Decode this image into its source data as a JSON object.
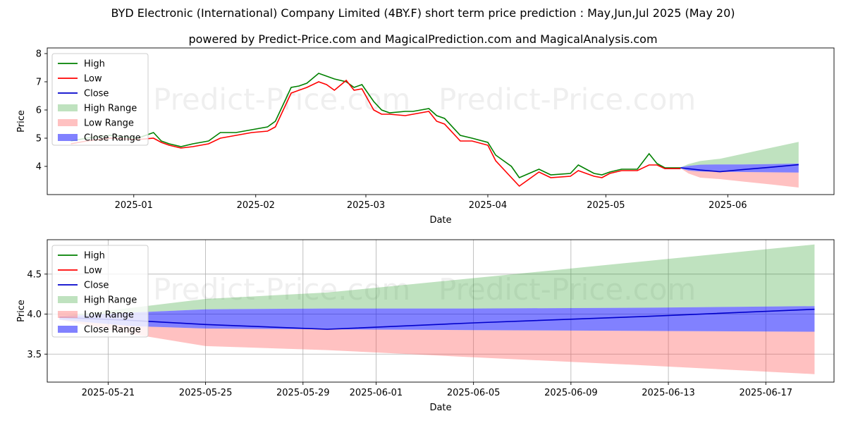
{
  "title": "BYD Electronic (International) Company Limited (4BY.F) short term price prediction : May,Jun,Jul 2025 (May 20)",
  "subtitle": "powered by Predict-Price.com and MagicalPrediction.com and MagicalAnalysis.com",
  "watermark": "Predict-Price.com",
  "colors": {
    "high": "#008000",
    "low": "#ff0000",
    "close": "#0000cc",
    "high_range": "#2ca02c",
    "low_range": "#ff4d4d",
    "close_range": "#1a1aff"
  },
  "chart_data": [
    {
      "type": "line",
      "xlabel": "Date",
      "ylabel": "Price",
      "ylim": [
        3,
        8.2
      ],
      "yticks": [
        4,
        5,
        6,
        7,
        8
      ],
      "xticks": [
        {
          "x": "2025-01-01",
          "label": "2025-01"
        },
        {
          "x": "2025-02-01",
          "label": "2025-02"
        },
        {
          "x": "2025-03-01",
          "label": "2025-03"
        },
        {
          "x": "2025-04-01",
          "label": "2025-04"
        },
        {
          "x": "2025-05-01",
          "label": "2025-05"
        },
        {
          "x": "2025-06-01",
          "label": "2025-06"
        }
      ],
      "xlim": [
        "2024-12-10",
        "2025-06-28"
      ],
      "legend": {
        "position": "top-left",
        "entries": [
          "High",
          "Low",
          "Close",
          "High Range",
          "Low Range",
          "Close Range"
        ]
      },
      "series": [
        {
          "name": "High",
          "x": [
            "2024-12-16",
            "2024-12-20",
            "2024-12-26",
            "2025-01-02",
            "2025-01-06",
            "2025-01-08",
            "2025-01-10",
            "2025-01-13",
            "2025-01-16",
            "2025-01-20",
            "2025-01-23",
            "2025-01-27",
            "2025-01-31",
            "2025-02-04",
            "2025-02-06",
            "2025-02-10",
            "2025-02-12",
            "2025-02-14",
            "2025-02-17",
            "2025-02-19",
            "2025-02-21",
            "2025-02-24",
            "2025-02-26",
            "2025-02-28",
            "2025-03-03",
            "2025-03-05",
            "2025-03-07",
            "2025-03-11",
            "2025-03-13",
            "2025-03-17",
            "2025-03-19",
            "2025-03-21",
            "2025-03-25",
            "2025-03-28",
            "2025-04-01",
            "2025-04-03",
            "2025-04-07",
            "2025-04-09",
            "2025-04-14",
            "2025-04-17",
            "2025-04-22",
            "2025-04-24",
            "2025-04-28",
            "2025-04-30",
            "2025-05-02",
            "2025-05-05",
            "2025-05-09",
            "2025-05-12",
            "2025-05-14",
            "2025-05-16",
            "2025-05-20"
          ],
          "values": [
            4.9,
            5.0,
            5.1,
            5.0,
            5.2,
            4.9,
            4.8,
            4.7,
            4.8,
            4.9,
            5.2,
            5.2,
            5.3,
            5.4,
            5.6,
            6.8,
            6.85,
            6.95,
            7.3,
            7.2,
            7.1,
            7.0,
            6.8,
            6.9,
            6.3,
            6.0,
            5.9,
            5.95,
            5.95,
            6.05,
            5.8,
            5.7,
            5.1,
            5.0,
            4.85,
            4.4,
            4.0,
            3.6,
            3.9,
            3.7,
            3.75,
            4.05,
            3.75,
            3.7,
            3.8,
            3.9,
            3.9,
            4.45,
            4.1,
            3.95,
            3.95
          ]
        },
        {
          "name": "Low",
          "x": [
            "2024-12-16",
            "2024-12-20",
            "2024-12-26",
            "2025-01-02",
            "2025-01-06",
            "2025-01-08",
            "2025-01-10",
            "2025-01-13",
            "2025-01-16",
            "2025-01-20",
            "2025-01-23",
            "2025-01-27",
            "2025-01-31",
            "2025-02-04",
            "2025-02-06",
            "2025-02-10",
            "2025-02-12",
            "2025-02-14",
            "2025-02-17",
            "2025-02-19",
            "2025-02-21",
            "2025-02-24",
            "2025-02-26",
            "2025-02-28",
            "2025-03-03",
            "2025-03-05",
            "2025-03-07",
            "2025-03-11",
            "2025-03-13",
            "2025-03-17",
            "2025-03-19",
            "2025-03-21",
            "2025-03-25",
            "2025-03-28",
            "2025-04-01",
            "2025-04-03",
            "2025-04-07",
            "2025-04-09",
            "2025-04-14",
            "2025-04-17",
            "2025-04-22",
            "2025-04-24",
            "2025-04-28",
            "2025-04-30",
            "2025-05-02",
            "2025-05-05",
            "2025-05-09",
            "2025-05-12",
            "2025-05-14",
            "2025-05-16",
            "2025-05-20"
          ],
          "values": [
            4.8,
            4.9,
            5.0,
            4.95,
            5.0,
            4.85,
            4.75,
            4.65,
            4.7,
            4.8,
            5.0,
            5.1,
            5.2,
            5.25,
            5.4,
            6.6,
            6.7,
            6.8,
            7.0,
            6.9,
            6.7,
            7.05,
            6.7,
            6.75,
            6.0,
            5.85,
            5.85,
            5.8,
            5.85,
            5.95,
            5.6,
            5.5,
            4.9,
            4.9,
            4.75,
            4.2,
            3.6,
            3.3,
            3.8,
            3.6,
            3.65,
            3.85,
            3.65,
            3.6,
            3.75,
            3.85,
            3.85,
            4.05,
            4.05,
            3.92,
            3.92
          ]
        },
        {
          "name": "Close",
          "x": [
            "2025-05-20",
            "2025-05-25",
            "2025-05-30",
            "2025-06-05",
            "2025-06-12",
            "2025-06-19"
          ],
          "values": [
            3.95,
            3.87,
            3.81,
            3.89,
            3.97,
            4.06
          ]
        },
        {
          "name": "High Range",
          "x": [
            "2025-05-20",
            "2025-05-22",
            "2025-05-25",
            "2025-05-30",
            "2025-06-05",
            "2025-06-12",
            "2025-06-19"
          ],
          "upper": [
            3.97,
            4.08,
            4.19,
            4.27,
            4.45,
            4.66,
            4.87
          ],
          "lower": [
            3.97,
            4.02,
            4.06,
            4.07,
            4.07,
            4.08,
            4.1
          ]
        },
        {
          "name": "Low Range",
          "x": [
            "2025-05-20",
            "2025-05-22",
            "2025-05-25",
            "2025-05-30",
            "2025-06-05",
            "2025-06-12",
            "2025-06-19"
          ],
          "upper": [
            3.93,
            3.85,
            3.82,
            3.81,
            3.8,
            3.79,
            3.78
          ],
          "lower": [
            3.93,
            3.75,
            3.6,
            3.55,
            3.46,
            3.36,
            3.25
          ]
        },
        {
          "name": "Close Range",
          "x": [
            "2025-05-20",
            "2025-05-22",
            "2025-05-25",
            "2025-05-30",
            "2025-06-05",
            "2025-06-12",
            "2025-06-19"
          ],
          "upper": [
            3.97,
            4.02,
            4.06,
            4.07,
            4.07,
            4.08,
            4.1
          ],
          "lower": [
            3.93,
            3.85,
            3.82,
            3.81,
            3.8,
            3.79,
            3.78
          ]
        }
      ]
    },
    {
      "type": "line",
      "xlabel": "Date",
      "ylabel": "Price",
      "ylim": [
        3.15,
        4.93
      ],
      "yticks": [
        3.5,
        4.0,
        4.5
      ],
      "yticklabels": [
        "3.5",
        "4.0",
        "4.5"
      ],
      "xticks": [
        {
          "x": "2025-05-21",
          "label": "2025-05-21"
        },
        {
          "x": "2025-05-25",
          "label": "2025-05-25"
        },
        {
          "x": "2025-05-29",
          "label": "2025-05-29"
        },
        {
          "x": "2025-06-01",
          "label": "2025-06-01"
        },
        {
          "x": "2025-06-05",
          "label": "2025-06-05"
        },
        {
          "x": "2025-06-09",
          "label": "2025-06-09"
        },
        {
          "x": "2025-06-13",
          "label": "2025-06-13"
        },
        {
          "x": "2025-06-17",
          "label": "2025-06-17"
        }
      ],
      "xlim": [
        "2025-05-18.5",
        "2025-06-19.8"
      ],
      "grid": true,
      "legend": {
        "position": "top-left",
        "entries": [
          "High",
          "Low",
          "Close",
          "High Range",
          "Low Range",
          "Close Range"
        ]
      },
      "series": [
        {
          "name": "Close",
          "x": [
            "2025-05-19",
            "2025-05-22",
            "2025-05-25",
            "2025-05-30",
            "2025-06-05",
            "2025-06-12",
            "2025-06-19"
          ],
          "values": [
            3.96,
            3.92,
            3.87,
            3.81,
            3.89,
            3.97,
            4.06
          ]
        },
        {
          "name": "High Range",
          "x": [
            "2025-05-19",
            "2025-05-22",
            "2025-05-25",
            "2025-05-30",
            "2025-06-05",
            "2025-06-12",
            "2025-06-19"
          ],
          "upper": [
            3.97,
            4.08,
            4.19,
            4.27,
            4.45,
            4.66,
            4.87
          ],
          "lower": [
            3.97,
            4.02,
            4.06,
            4.07,
            4.07,
            4.08,
            4.1
          ]
        },
        {
          "name": "Low Range",
          "x": [
            "2025-05-19",
            "2025-05-22",
            "2025-05-25",
            "2025-05-30",
            "2025-06-05",
            "2025-06-12",
            "2025-06-19"
          ],
          "upper": [
            3.93,
            3.85,
            3.82,
            3.81,
            3.8,
            3.79,
            3.78
          ],
          "lower": [
            3.93,
            3.75,
            3.6,
            3.55,
            3.46,
            3.36,
            3.25
          ]
        },
        {
          "name": "Close Range",
          "x": [
            "2025-05-19",
            "2025-05-22",
            "2025-05-25",
            "2025-05-30",
            "2025-06-05",
            "2025-06-12",
            "2025-06-19"
          ],
          "upper": [
            3.97,
            4.02,
            4.06,
            4.07,
            4.07,
            4.08,
            4.1
          ],
          "lower": [
            3.93,
            3.85,
            3.82,
            3.81,
            3.8,
            3.79,
            3.78
          ]
        }
      ]
    }
  ]
}
